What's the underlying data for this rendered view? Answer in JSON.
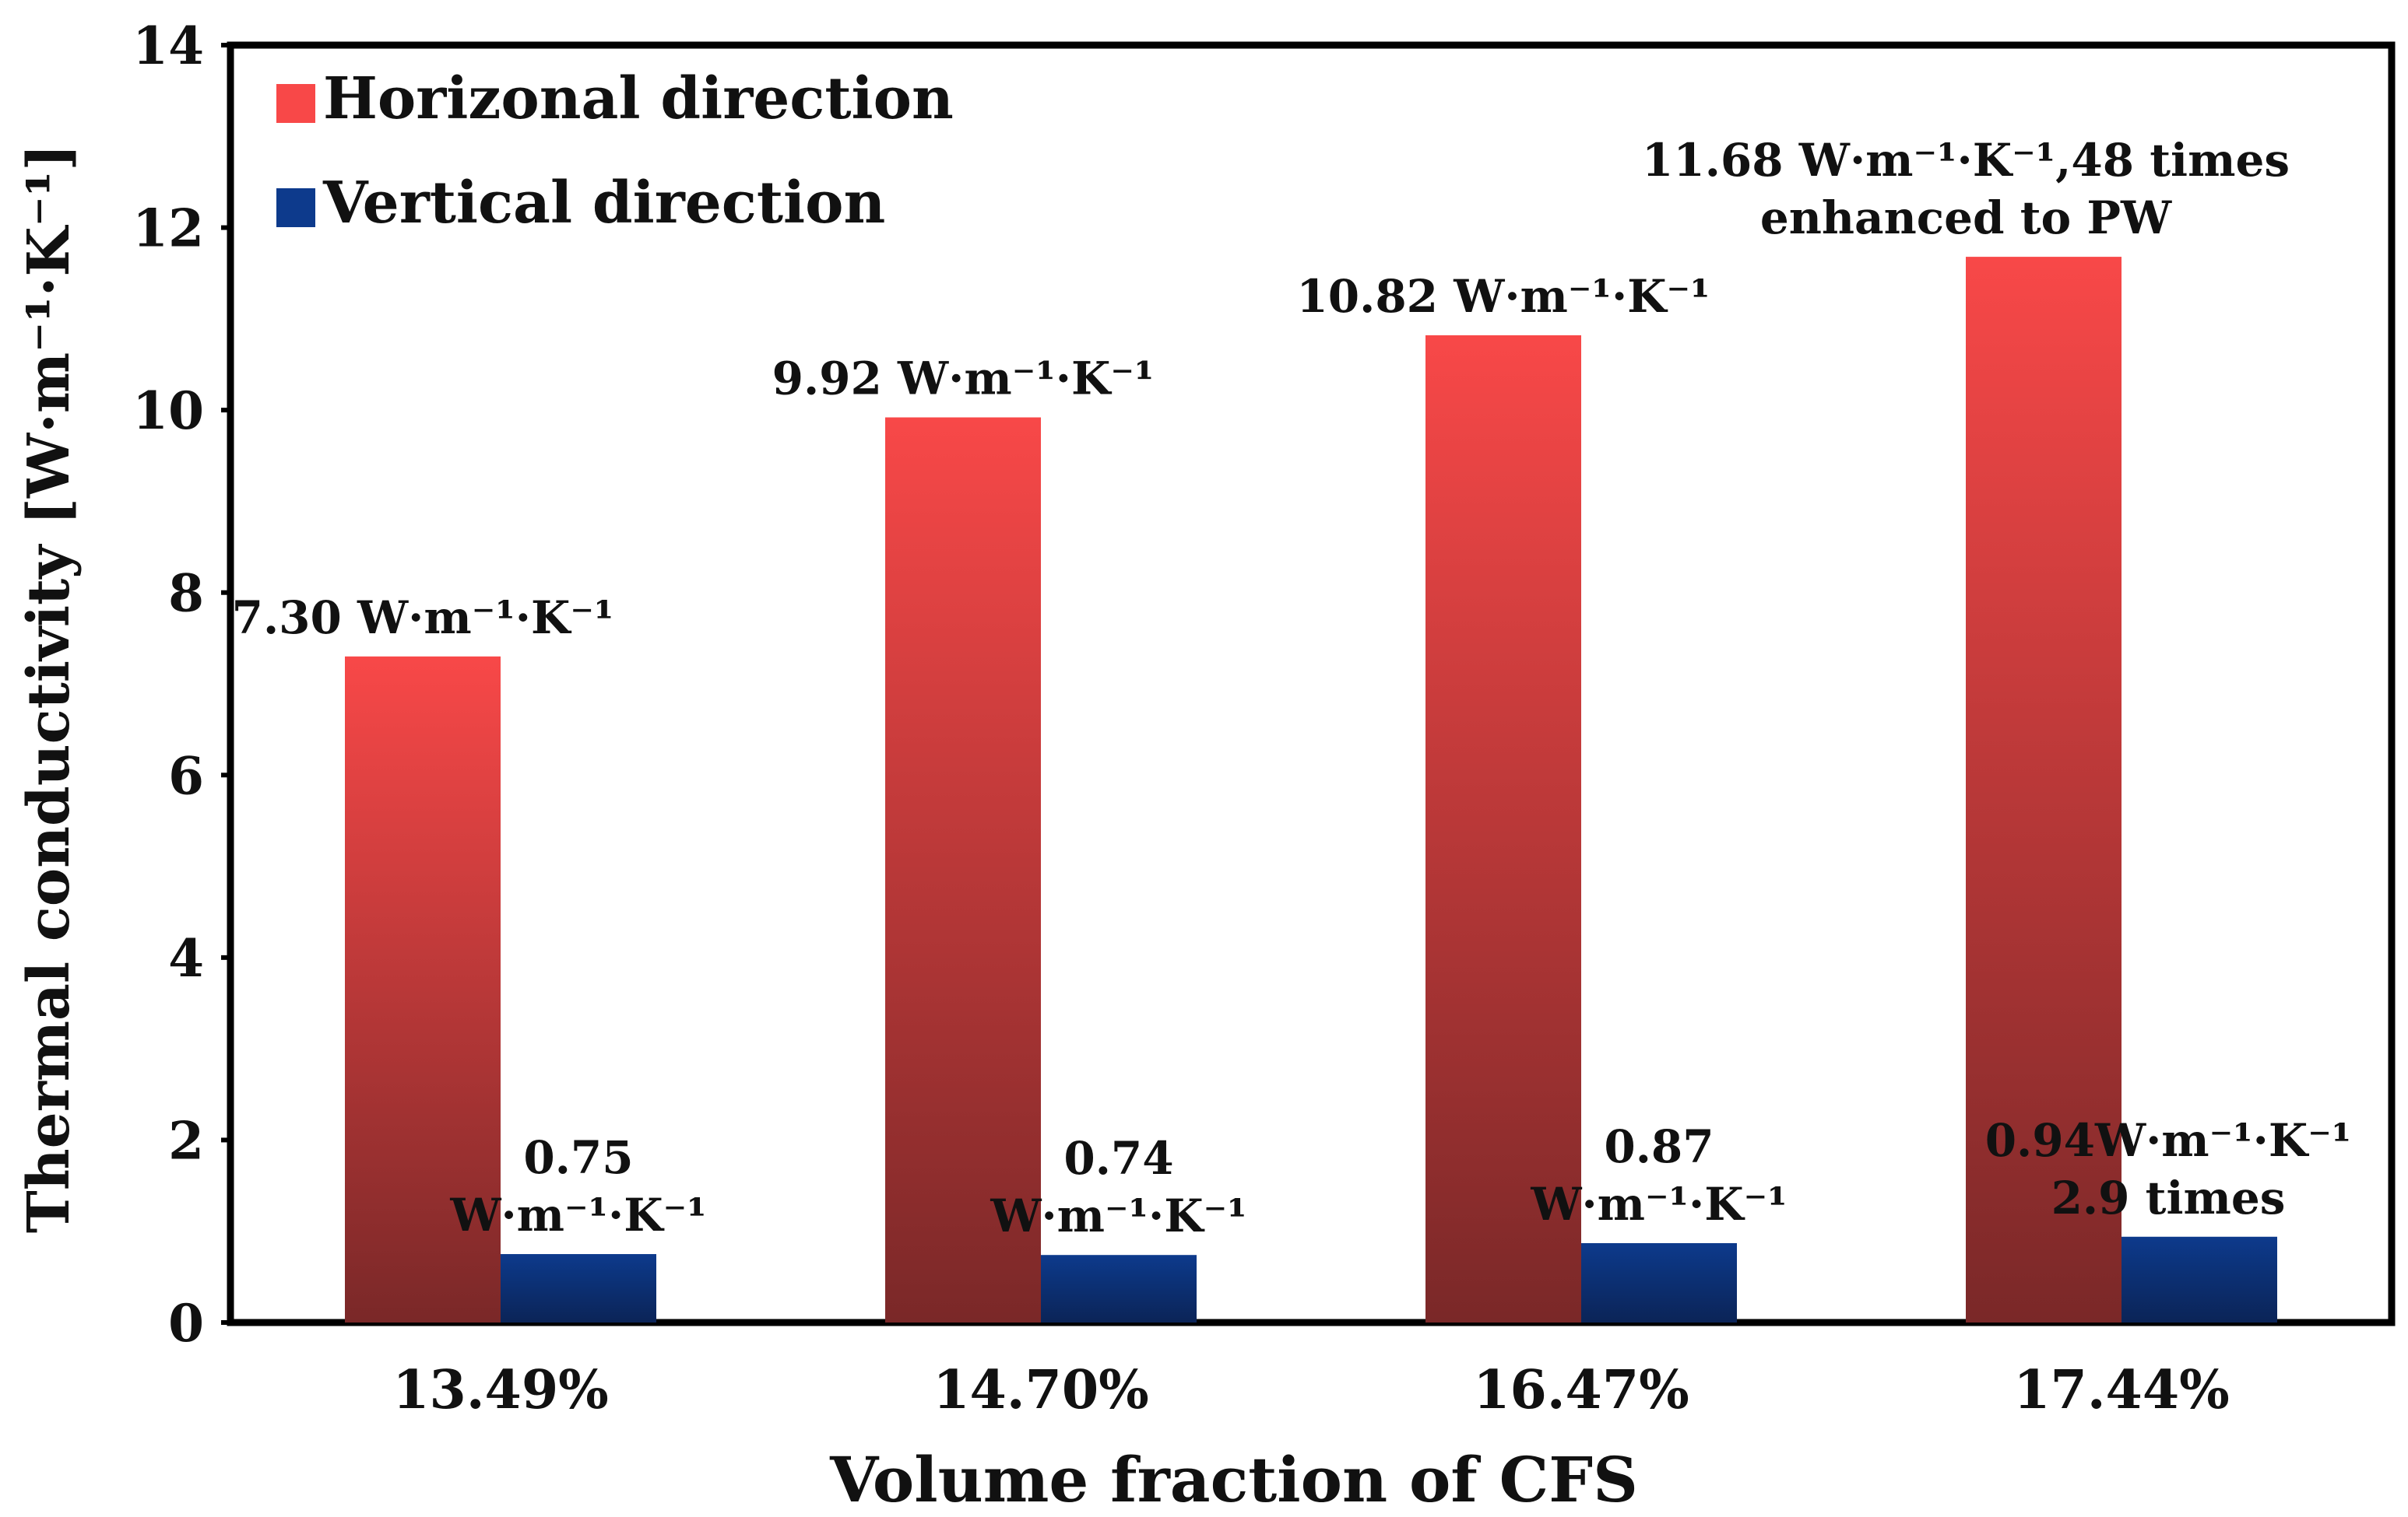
{
  "chart_data": {
    "type": "bar",
    "title": "",
    "xlabel": "Volume fraction of CFS",
    "ylabel": "Thermal conductivity [W·m⁻¹·K⁻¹]",
    "ylim": [
      0,
      14
    ],
    "yticks": [
      0,
      2,
      4,
      6,
      8,
      10,
      12,
      14
    ],
    "grid": false,
    "legend_position": "top-left",
    "categories": [
      "13.49%",
      "14.70%",
      "16.47%",
      "17.44%"
    ],
    "series": [
      {
        "name": "Horizonal direction",
        "color": "#f84848",
        "color_dark": "#7a2828",
        "values": [
          7.3,
          9.92,
          10.82,
          11.68
        ],
        "labels": [
          [
            "7.30 W·m⁻¹·K⁻¹"
          ],
          [
            "9.92 W·m⁻¹·K⁻¹"
          ],
          [
            "10.82 W·m⁻¹·K⁻¹"
          ],
          [
            "11.68 W·m⁻¹·K⁻¹,48 times",
            "enhanced to PW"
          ]
        ]
      },
      {
        "name": "Vertical direction",
        "color": "#0d3a8c",
        "color_dark": "#0b2457",
        "values": [
          0.75,
          0.74,
          0.87,
          0.94
        ],
        "labels": [
          [
            "0.75",
            "W·m⁻¹·K⁻¹"
          ],
          [
            "0.74",
            "W·m⁻¹·K⁻¹"
          ],
          [
            "0.87",
            "W·m⁻¹·K⁻¹"
          ],
          [
            "0.94W·m⁻¹·K⁻¹",
            "2.9 times"
          ]
        ]
      }
    ]
  }
}
